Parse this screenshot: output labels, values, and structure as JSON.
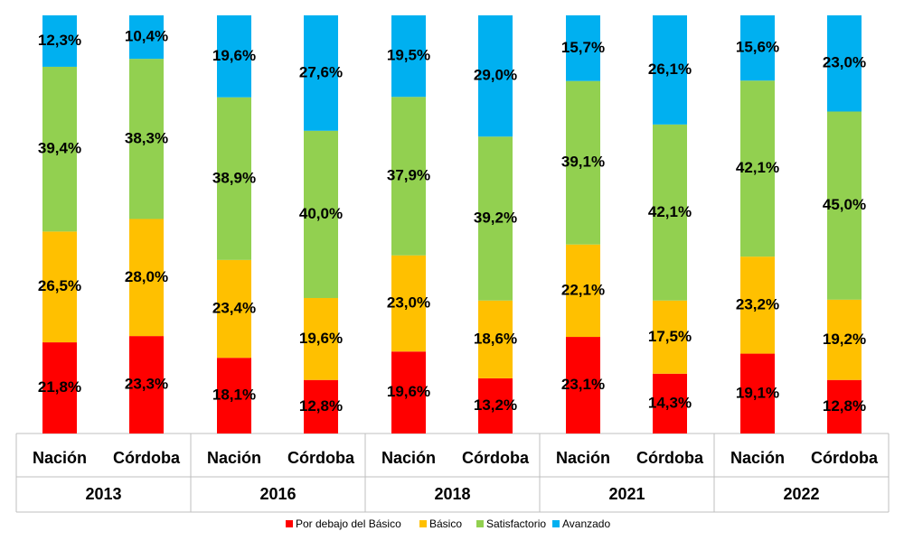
{
  "chart_data": {
    "type": "stacked_bar",
    "categories": [
      "Nación",
      "Córdoba",
      "Nación",
      "Córdoba",
      "Nación",
      "Córdoba",
      "Nación",
      "Córdoba",
      "Nación",
      "Córdoba"
    ],
    "groups": [
      "2013",
      "2016",
      "2018",
      "2021",
      "2022"
    ],
    "ylim": [
      0,
      100
    ],
    "series": [
      {
        "name": "Por debajo del Básico",
        "color": "#ff0000",
        "values": [
          21.8,
          23.3,
          18.1,
          12.8,
          19.6,
          13.2,
          23.1,
          14.3,
          19.1,
          12.8
        ],
        "value_labels": [
          "21,8%",
          "23,3%",
          "18,1%",
          "12,8%",
          "19,6%",
          "13,2%",
          "23,1%",
          "14,3%",
          "19,1%",
          "12,8%"
        ]
      },
      {
        "name": "Básico",
        "color": "#ffc000",
        "values": [
          26.5,
          28.0,
          23.4,
          19.6,
          23.0,
          18.6,
          22.1,
          17.5,
          23.2,
          19.2
        ],
        "value_labels": [
          "26,5%",
          "28,0%",
          "23,4%",
          "19,6%",
          "23,0%",
          "18,6%",
          "22,1%",
          "17,5%",
          "23,2%",
          "19,2%"
        ]
      },
      {
        "name": "Satisfactorio",
        "color": "#92d050",
        "values": [
          39.4,
          38.3,
          38.9,
          40.0,
          37.9,
          39.2,
          39.1,
          42.1,
          42.1,
          45.0
        ],
        "value_labels": [
          "39,4%",
          "38,3%",
          "38,9%",
          "40,0%",
          "37,9%",
          "39,2%",
          "39,1%",
          "42,1%",
          "42,1%",
          "45,0%"
        ]
      },
      {
        "name": "Avanzado",
        "color": "#00b0f0",
        "values": [
          12.3,
          10.4,
          19.6,
          27.6,
          19.5,
          29.0,
          15.7,
          26.1,
          15.6,
          23.0
        ],
        "value_labels": [
          "12,3%",
          "10,4%",
          "19,6%",
          "27,6%",
          "19,5%",
          "29,0%",
          "15,7%",
          "26,1%",
          "15,6%",
          "23,0%"
        ]
      }
    ],
    "legend": "bottom"
  }
}
